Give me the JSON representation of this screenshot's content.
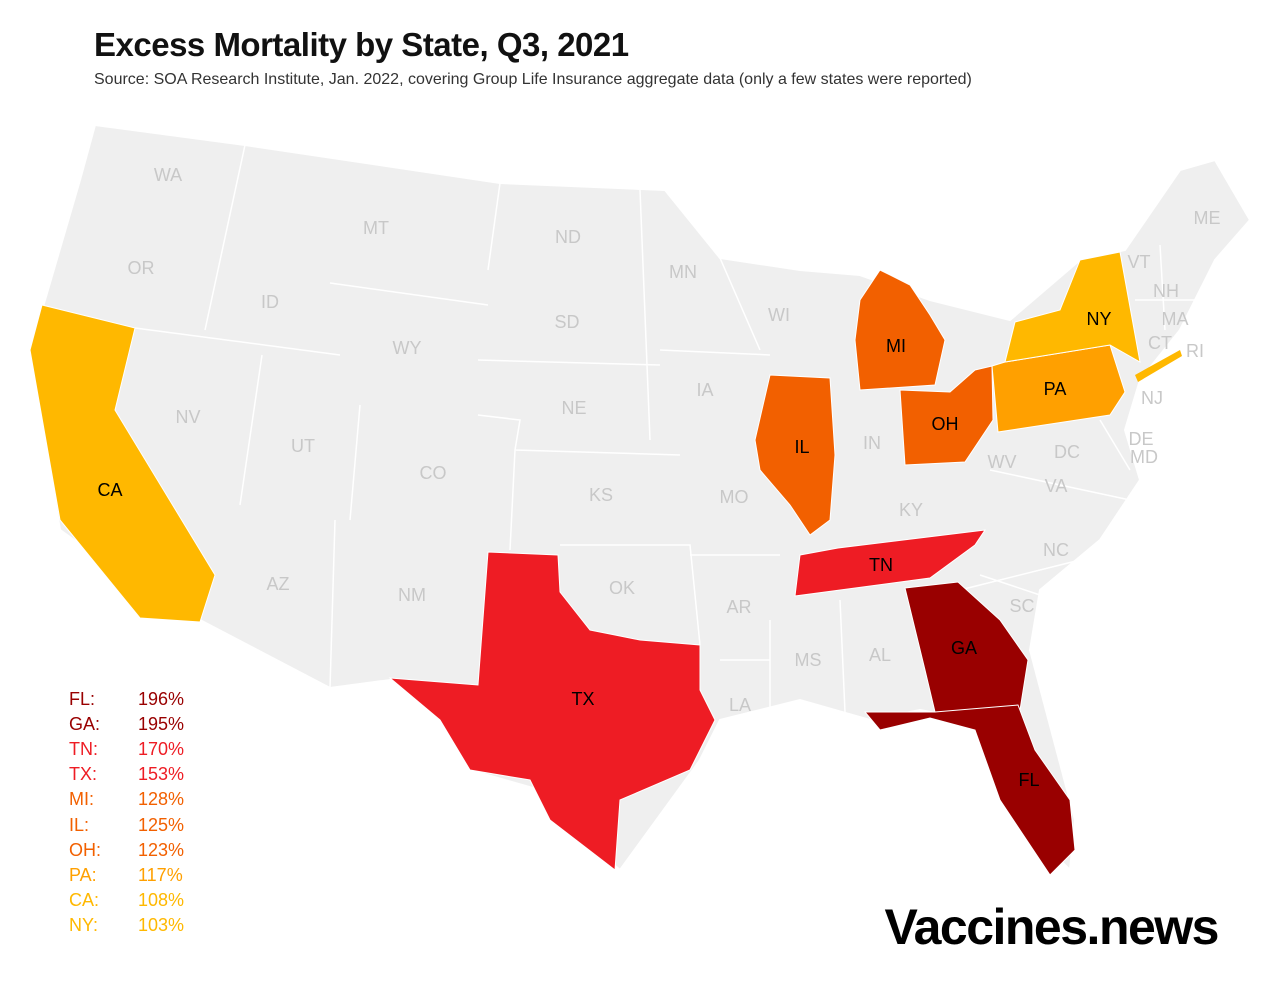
{
  "title": "Excess Mortality by State, Q3, 2021",
  "subtitle": "Source: SOA Research Institute, Jan. 2022, covering Group Life Insurance aggregate data  (only a few states were reported)",
  "brand": "Vaccines.news",
  "colors": {
    "base": "#efefef",
    "border": "#ffffff",
    "FL": "#990000",
    "GA": "#990000",
    "TN": "#ee1c24",
    "TX": "#ee1c24",
    "MI": "#f26000",
    "IL": "#f26000",
    "OH": "#f26000",
    "PA": "#ffa000",
    "CA": "#ffb800",
    "NY": "#ffb800"
  },
  "legend": [
    {
      "state": "FL:",
      "value": "196%",
      "color": "#990000"
    },
    {
      "state": "GA:",
      "value": "195%",
      "color": "#990000"
    },
    {
      "state": "TN:",
      "value": "170%",
      "color": "#ee1c24"
    },
    {
      "state": "TX:",
      "value": "153%",
      "color": "#ee1c24"
    },
    {
      "state": "MI:",
      "value": "128%",
      "color": "#f26000"
    },
    {
      "state": "IL:",
      "value": "125%",
      "color": "#f26000"
    },
    {
      "state": "OH:",
      "value": "123%",
      "color": "#f26000"
    },
    {
      "state": "PA:",
      "value": "117%",
      "color": "#ffa000"
    },
    {
      "state": "CA:",
      "value": "108%",
      "color": "#ffb800"
    },
    {
      "state": "NY:",
      "value": "103%",
      "color": "#ffb800"
    }
  ],
  "labels": {
    "WA": "WA",
    "OR": "OR",
    "CA": "CA",
    "NV": "NV",
    "ID": "ID",
    "MT": "MT",
    "WY": "WY",
    "UT": "UT",
    "AZ": "AZ",
    "CO": "CO",
    "NM": "NM",
    "ND": "ND",
    "SD": "SD",
    "NE": "NE",
    "KS": "KS",
    "OK": "OK",
    "TX": "TX",
    "MN": "MN",
    "IA": "IA",
    "MO": "MO",
    "AR": "AR",
    "LA": "LA",
    "WI": "WI",
    "IL": "IL",
    "MI": "MI",
    "IN": "IN",
    "OH": "OH",
    "KY": "KY",
    "TN": "TN",
    "MS": "MS",
    "AL": "AL",
    "GA": "GA",
    "FL": "FL",
    "SC": "SC",
    "NC": "NC",
    "VA": "VA",
    "WV": "WV",
    "DC": "DC",
    "MD": "MD",
    "DE": "DE",
    "PA": "PA",
    "NJ": "NJ",
    "NY": "NY",
    "CT": "CT",
    "RI": "RI",
    "MA": "MA",
    "VT": "VT",
    "NH": "NH",
    "ME": "ME"
  }
}
